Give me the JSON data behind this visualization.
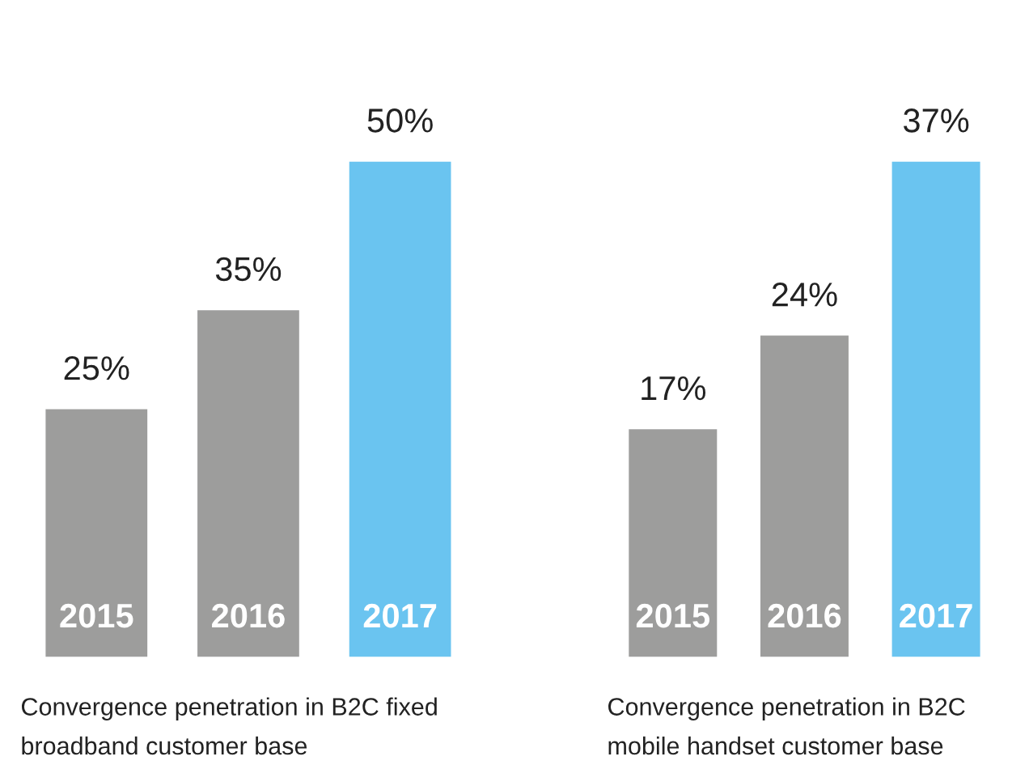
{
  "chart_data": [
    {
      "type": "bar",
      "categories": [
        "2015",
        "2016",
        "2017"
      ],
      "values": [
        25,
        35,
        50
      ],
      "colors": [
        "#9d9d9c",
        "#9d9d9c",
        "#6ac4f0"
      ],
      "data_labels": true,
      "value_labels": [
        "25%",
        "35%",
        "50%"
      ],
      "xlabel": "Convergence penetration in B2C fixed\nbroadband customer base",
      "grid": false,
      "legend": false
    },
    {
      "type": "bar",
      "categories": [
        "2015",
        "2016",
        "2017"
      ],
      "values": [
        17,
        24,
        37
      ],
      "colors": [
        "#9d9d9c",
        "#9d9d9c",
        "#6ac4f0"
      ],
      "data_labels": true,
      "value_labels": [
        "17%",
        "24%",
        "37%"
      ],
      "xlabel": "Convergence penetration in B2C\nmobile handset customer base",
      "grid": false,
      "legend": false
    }
  ]
}
